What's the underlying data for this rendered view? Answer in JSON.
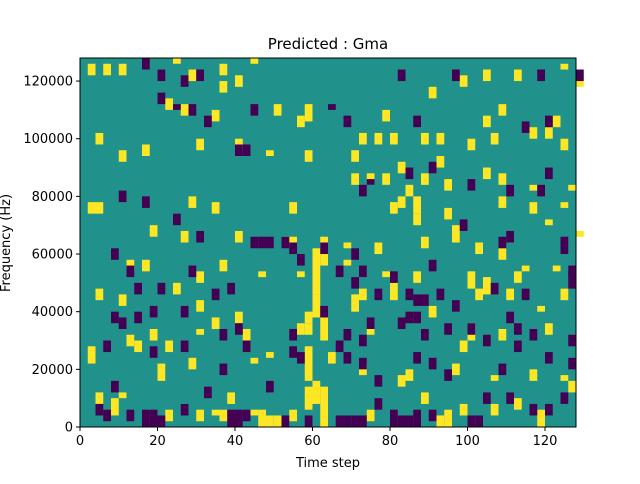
{
  "chart_data": {
    "type": "heatmap",
    "title": "Predicted : Gma",
    "xlabel": "Time step",
    "ylabel": "Frequency (Hz)",
    "xlim": [
      0,
      128
    ],
    "ylim": [
      0,
      128000
    ],
    "x_ticks": [
      0,
      20,
      40,
      60,
      80,
      100,
      120
    ],
    "y_ticks": [
      0,
      20000,
      40000,
      60000,
      80000,
      100000,
      120000
    ],
    "grid": false,
    "legend": "none",
    "colormap": "viridis",
    "colors": {
      "background": "#21918c",
      "low": "#440154",
      "high": "#fde725"
    },
    "n_time_steps": 128,
    "n_freq_bins": 64,
    "bin_height_hz": 2000,
    "high_cells": [
      [
        2,
        122000,
        126000
      ],
      [
        6,
        122000,
        126000
      ],
      [
        10,
        122000,
        126000
      ],
      [
        24,
        126000,
        128000
      ],
      [
        28,
        120000,
        124000
      ],
      [
        36,
        122000,
        126000
      ],
      [
        40,
        118000,
        122000
      ],
      [
        44,
        126000,
        128000
      ],
      [
        98,
        118000,
        122000
      ],
      [
        104,
        120000,
        124000
      ],
      [
        112,
        120000,
        124000
      ],
      [
        124,
        124000,
        126000
      ],
      [
        128,
        118000,
        122000
      ],
      [
        22,
        110000,
        114000
      ],
      [
        26,
        108000,
        112000
      ],
      [
        34,
        106000,
        110000
      ],
      [
        36,
        116000,
        120000
      ],
      [
        50,
        108000,
        112000
      ],
      [
        56,
        104000,
        108000
      ],
      [
        58,
        106000,
        112000
      ],
      [
        78,
        106000,
        110000
      ],
      [
        90,
        114000,
        118000
      ],
      [
        104,
        104000,
        108000
      ],
      [
        108,
        108000,
        112000
      ],
      [
        116,
        100000,
        104000
      ],
      [
        120,
        100000,
        104000
      ],
      [
        122,
        104000,
        108000
      ],
      [
        4,
        98000,
        102000
      ],
      [
        10,
        92000,
        96000
      ],
      [
        16,
        94000,
        98000
      ],
      [
        30,
        96000,
        100000
      ],
      [
        40,
        96000,
        100000
      ],
      [
        48,
        94000,
        96000
      ],
      [
        58,
        92000,
        96000
      ],
      [
        70,
        92000,
        96000
      ],
      [
        72,
        98000,
        102000
      ],
      [
        76,
        98000,
        102000
      ],
      [
        80,
        98000,
        102000
      ],
      [
        88,
        98000,
        102000
      ],
      [
        92,
        98000,
        102000
      ],
      [
        100,
        96000,
        100000
      ],
      [
        106,
        98000,
        102000
      ],
      [
        82,
        88000,
        92000
      ],
      [
        92,
        90000,
        94000
      ],
      [
        104,
        86000,
        90000
      ],
      [
        124,
        96000,
        100000
      ],
      [
        70,
        84000,
        88000
      ],
      [
        74,
        84000,
        88000
      ],
      [
        78,
        84000,
        88000
      ],
      [
        84,
        80000,
        84000
      ],
      [
        88,
        84000,
        88000
      ],
      [
        94,
        82000,
        86000
      ],
      [
        108,
        84000,
        88000
      ],
      [
        116,
        82000,
        84000
      ],
      [
        126,
        82000,
        84000
      ],
      [
        2,
        74000,
        78000
      ],
      [
        4,
        74000,
        78000
      ],
      [
        28,
        76000,
        80000
      ],
      [
        34,
        74000,
        78000
      ],
      [
        54,
        74000,
        78000
      ],
      [
        80,
        74000,
        78000
      ],
      [
        82,
        76000,
        80000
      ],
      [
        86,
        74000,
        80000
      ],
      [
        86,
        70000,
        74000
      ],
      [
        94,
        72000,
        76000
      ],
      [
        108,
        76000,
        80000
      ],
      [
        116,
        74000,
        78000
      ],
      [
        124,
        76000,
        78000
      ],
      [
        120,
        70000,
        72000
      ],
      [
        18,
        66000,
        70000
      ],
      [
        26,
        64000,
        68000
      ],
      [
        40,
        64000,
        68000
      ],
      [
        52,
        64000,
        66000
      ],
      [
        54,
        62000,
        66000
      ],
      [
        62,
        56000,
        66000
      ],
      [
        68,
        62000,
        64000
      ],
      [
        76,
        60000,
        64000
      ],
      [
        88,
        62000,
        66000
      ],
      [
        96,
        64000,
        70000
      ],
      [
        102,
        60000,
        64000
      ],
      [
        108,
        58000,
        62000
      ],
      [
        128,
        66000,
        68000
      ],
      [
        12,
        54000,
        58000
      ],
      [
        16,
        54000,
        58000
      ],
      [
        30,
        50000,
        54000
      ],
      [
        36,
        54000,
        58000
      ],
      [
        46,
        52000,
        54000
      ],
      [
        56,
        52000,
        54000
      ],
      [
        60,
        46000,
        62000
      ],
      [
        60,
        38000,
        46000
      ],
      [
        68,
        56000,
        58000
      ],
      [
        78,
        52000,
        54000
      ],
      [
        86,
        50000,
        54000
      ],
      [
        100,
        48000,
        54000
      ],
      [
        102,
        44000,
        48000
      ],
      [
        104,
        46000,
        52000
      ],
      [
        112,
        50000,
        54000
      ],
      [
        114,
        54000,
        56000
      ],
      [
        122,
        54000,
        56000
      ],
      [
        4,
        44000,
        48000
      ],
      [
        10,
        42000,
        46000
      ],
      [
        24,
        46000,
        50000
      ],
      [
        30,
        40000,
        44000
      ],
      [
        34,
        34000,
        38000
      ],
      [
        40,
        36000,
        40000
      ],
      [
        58,
        32000,
        36000
      ],
      [
        70,
        40000,
        46000
      ],
      [
        72,
        44000,
        48000
      ],
      [
        80,
        44000,
        50000
      ],
      [
        90,
        38000,
        42000
      ],
      [
        110,
        44000,
        48000
      ],
      [
        118,
        40000,
        42000
      ],
      [
        124,
        44000,
        48000
      ],
      [
        12,
        28000,
        32000
      ],
      [
        18,
        30000,
        34000
      ],
      [
        22,
        26000,
        30000
      ],
      [
        30,
        32000,
        34000
      ],
      [
        42,
        30000,
        34000
      ],
      [
        56,
        32000,
        36000
      ],
      [
        58,
        36000,
        40000
      ],
      [
        62,
        30000,
        38000
      ],
      [
        74,
        32000,
        34000
      ],
      [
        98,
        26000,
        30000
      ],
      [
        100,
        30000,
        36000
      ],
      [
        108,
        30000,
        34000
      ],
      [
        120,
        32000,
        36000
      ],
      [
        2,
        22000,
        28000
      ],
      [
        14,
        26000,
        30000
      ],
      [
        20,
        16000,
        22000
      ],
      [
        28,
        20000,
        24000
      ],
      [
        44,
        22000,
        24000
      ],
      [
        48,
        24000,
        26000
      ],
      [
        58,
        16000,
        28000
      ],
      [
        64,
        22000,
        26000
      ],
      [
        72,
        18000,
        22000
      ],
      [
        84,
        16000,
        20000
      ],
      [
        96,
        18000,
        22000
      ],
      [
        106,
        16000,
        18000
      ],
      [
        116,
        16000,
        20000
      ],
      [
        124,
        16000,
        18000
      ],
      [
        4,
        8000,
        12000
      ],
      [
        8,
        4000,
        10000
      ],
      [
        10,
        10000,
        12000
      ],
      [
        22,
        2000,
        6000
      ],
      [
        30,
        2000,
        6000
      ],
      [
        34,
        4000,
        6000
      ],
      [
        36,
        2000,
        6000
      ],
      [
        38,
        8000,
        12000
      ],
      [
        44,
        4000,
        6000
      ],
      [
        46,
        0,
        6000
      ],
      [
        48,
        0,
        4000
      ],
      [
        50,
        0,
        4000
      ],
      [
        54,
        2000,
        6000
      ],
      [
        58,
        6000,
        14000
      ],
      [
        60,
        8000,
        16000
      ],
      [
        62,
        0,
        14000
      ],
      [
        74,
        2000,
        6000
      ],
      [
        82,
        14000,
        18000
      ],
      [
        88,
        8000,
        12000
      ],
      [
        92,
        0,
        4000
      ],
      [
        94,
        0,
        6000
      ],
      [
        98,
        4000,
        8000
      ],
      [
        106,
        4000,
        8000
      ],
      [
        112,
        6000,
        10000
      ],
      [
        118,
        0,
        6000
      ],
      [
        126,
        12000,
        16000
      ]
    ],
    "low_cells": [
      [
        16,
        124000,
        128000
      ],
      [
        20,
        120000,
        124000
      ],
      [
        26,
        118000,
        122000
      ],
      [
        30,
        120000,
        124000
      ],
      [
        82,
        120000,
        124000
      ],
      [
        96,
        120000,
        124000
      ],
      [
        118,
        120000,
        124000
      ],
      [
        128,
        120000,
        124000
      ],
      [
        20,
        112000,
        116000
      ],
      [
        24,
        110000,
        112000
      ],
      [
        28,
        108000,
        112000
      ],
      [
        32,
        104000,
        108000
      ],
      [
        44,
        108000,
        112000
      ],
      [
        64,
        110000,
        112000
      ],
      [
        68,
        104000,
        108000
      ],
      [
        86,
        104000,
        108000
      ],
      [
        114,
        102000,
        106000
      ],
      [
        120,
        104000,
        108000
      ],
      [
        40,
        94000,
        98000
      ],
      [
        42,
        94000,
        98000
      ],
      [
        72,
        80000,
        84000
      ],
      [
        74,
        84000,
        86000
      ],
      [
        84,
        86000,
        90000
      ],
      [
        90,
        88000,
        92000
      ],
      [
        100,
        82000,
        86000
      ],
      [
        110,
        80000,
        84000
      ],
      [
        120,
        86000,
        90000
      ],
      [
        118,
        80000,
        84000
      ],
      [
        10,
        78000,
        82000
      ],
      [
        16,
        76000,
        80000
      ],
      [
        24,
        70000,
        74000
      ],
      [
        30,
        64000,
        68000
      ],
      [
        44,
        62000,
        66000
      ],
      [
        46,
        62000,
        66000
      ],
      [
        52,
        62000,
        66000
      ],
      [
        56,
        56000,
        60000
      ],
      [
        62,
        60000,
        64000
      ],
      [
        70,
        58000,
        62000
      ],
      [
        72,
        52000,
        56000
      ],
      [
        90,
        54000,
        58000
      ],
      [
        98,
        68000,
        72000
      ],
      [
        108,
        62000,
        66000
      ],
      [
        110,
        64000,
        68000
      ],
      [
        124,
        60000,
        66000
      ],
      [
        126,
        52000,
        56000
      ],
      [
        8,
        58000,
        62000
      ],
      [
        12,
        52000,
        56000
      ],
      [
        14,
        46000,
        50000
      ],
      [
        20,
        46000,
        50000
      ],
      [
        28,
        52000,
        56000
      ],
      [
        34,
        44000,
        48000
      ],
      [
        38,
        46000,
        50000
      ],
      [
        48,
        62000,
        66000
      ],
      [
        54,
        60000,
        64000
      ],
      [
        66,
        52000,
        56000
      ],
      [
        70,
        48000,
        52000
      ],
      [
        76,
        44000,
        48000
      ],
      [
        80,
        50000,
        54000
      ],
      [
        84,
        44000,
        48000
      ],
      [
        86,
        42000,
        46000
      ],
      [
        88,
        42000,
        46000
      ],
      [
        92,
        44000,
        48000
      ],
      [
        96,
        40000,
        44000
      ],
      [
        106,
        46000,
        50000
      ],
      [
        110,
        36000,
        40000
      ],
      [
        114,
        44000,
        48000
      ],
      [
        126,
        48000,
        54000
      ],
      [
        8,
        36000,
        40000
      ],
      [
        10,
        34000,
        38000
      ],
      [
        14,
        36000,
        40000
      ],
      [
        18,
        38000,
        42000
      ],
      [
        26,
        38000,
        42000
      ],
      [
        36,
        30000,
        34000
      ],
      [
        40,
        32000,
        36000
      ],
      [
        54,
        30000,
        34000
      ],
      [
        62,
        38000,
        42000
      ],
      [
        68,
        30000,
        34000
      ],
      [
        72,
        28000,
        32000
      ],
      [
        74,
        34000,
        38000
      ],
      [
        82,
        34000,
        38000
      ],
      [
        84,
        36000,
        40000
      ],
      [
        86,
        36000,
        40000
      ],
      [
        88,
        30000,
        34000
      ],
      [
        94,
        32000,
        36000
      ],
      [
        100,
        32000,
        36000
      ],
      [
        104,
        28000,
        32000
      ],
      [
        112,
        32000,
        36000
      ],
      [
        116,
        30000,
        34000
      ],
      [
        126,
        28000,
        32000
      ],
      [
        6,
        26000,
        30000
      ],
      [
        18,
        24000,
        28000
      ],
      [
        26,
        26000,
        30000
      ],
      [
        36,
        18000,
        22000
      ],
      [
        42,
        26000,
        30000
      ],
      [
        54,
        24000,
        28000
      ],
      [
        56,
        22000,
        26000
      ],
      [
        66,
        26000,
        30000
      ],
      [
        68,
        22000,
        26000
      ],
      [
        72,
        20000,
        24000
      ],
      [
        76,
        14000,
        18000
      ],
      [
        86,
        22000,
        26000
      ],
      [
        90,
        20000,
        24000
      ],
      [
        94,
        16000,
        20000
      ],
      [
        108,
        18000,
        22000
      ],
      [
        112,
        26000,
        30000
      ],
      [
        120,
        22000,
        26000
      ],
      [
        126,
        20000,
        24000
      ],
      [
        4,
        4000,
        8000
      ],
      [
        6,
        2000,
        6000
      ],
      [
        8,
        12000,
        16000
      ],
      [
        12,
        2000,
        6000
      ],
      [
        16,
        0,
        6000
      ],
      [
        18,
        0,
        6000
      ],
      [
        20,
        0,
        4000
      ],
      [
        26,
        4000,
        8000
      ],
      [
        32,
        10000,
        14000
      ],
      [
        38,
        0,
        6000
      ],
      [
        40,
        0,
        6000
      ],
      [
        42,
        2000,
        6000
      ],
      [
        48,
        12000,
        16000
      ],
      [
        52,
        0,
        4000
      ],
      [
        58,
        0,
        4000
      ],
      [
        66,
        0,
        4000
      ],
      [
        68,
        0,
        4000
      ],
      [
        70,
        0,
        4000
      ],
      [
        72,
        0,
        4000
      ],
      [
        76,
        6000,
        10000
      ],
      [
        80,
        0,
        6000
      ],
      [
        82,
        0,
        4000
      ],
      [
        84,
        0,
        4000
      ],
      [
        86,
        0,
        6000
      ],
      [
        90,
        2000,
        6000
      ],
      [
        100,
        0,
        4000
      ],
      [
        102,
        0,
        4000
      ],
      [
        104,
        8000,
        12000
      ],
      [
        110,
        8000,
        12000
      ],
      [
        116,
        4000,
        8000
      ],
      [
        120,
        4000,
        8000
      ],
      [
        124,
        8000,
        12000
      ]
    ]
  }
}
